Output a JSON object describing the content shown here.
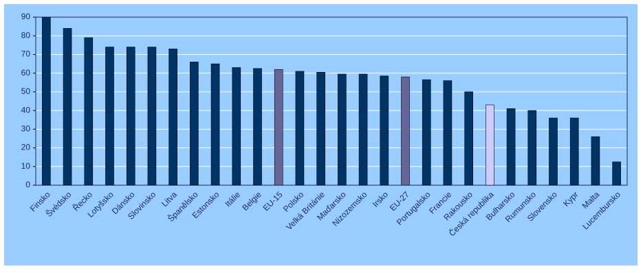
{
  "chart_data": {
    "type": "bar",
    "categories": [
      "Finsko",
      "Švédsko",
      "Řecko",
      "Lotyšsko",
      "Dánsko",
      "Slovinsko",
      "Litva",
      "Španělsko",
      "Estonsko",
      "Itálie",
      "Belgie",
      "EU-15",
      "Polsko",
      "Velká Británie",
      "Maďarsko",
      "Nizozemsko",
      "Irsko",
      "EU-27",
      "Portugalsko",
      "Francie",
      "Rakousko",
      "Česká republika",
      "Bulharsko",
      "Rumunsko",
      "Slovensko",
      "Kypr",
      "Malta",
      "Lucembursko"
    ],
    "values": [
      90,
      84,
      79,
      74,
      74,
      74,
      73,
      66,
      65,
      63,
      62.5,
      62,
      61,
      60.5,
      59.5,
      59.5,
      58.5,
      58,
      56.5,
      56,
      50,
      43,
      41,
      40,
      36,
      36,
      26,
      12.5
    ],
    "colors": [
      "#003366",
      "#003366",
      "#003366",
      "#003366",
      "#003366",
      "#003366",
      "#003366",
      "#003366",
      "#003366",
      "#003366",
      "#003366",
      "#666699",
      "#003366",
      "#003366",
      "#003366",
      "#003366",
      "#003366",
      "#666699",
      "#003366",
      "#003366",
      "#003366",
      "#ccccff",
      "#003366",
      "#003366",
      "#003366",
      "#003366",
      "#003366",
      "#003366"
    ],
    "ylim": [
      0,
      90
    ],
    "yticks": [
      0,
      10,
      20,
      30,
      40,
      50,
      60,
      70,
      80,
      90
    ],
    "grid": true
  }
}
